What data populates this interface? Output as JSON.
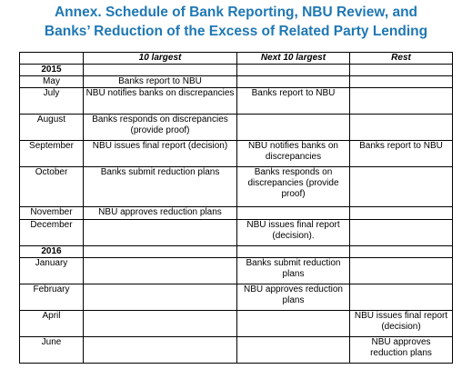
{
  "title": {
    "line1": "Annex. Schedule of Bank Reporting, NBU Review, and",
    "line2": "Banks’ Reduction of the Excess of Related Party Lending"
  },
  "table": {
    "headers": [
      "",
      "10 largest",
      "Next 10 largest",
      "Rest"
    ],
    "rows": [
      {
        "type": "year",
        "label": "2015"
      },
      {
        "label": "May",
        "c1": "Banks report to NBU",
        "c2": "",
        "c3": ""
      },
      {
        "label": "July",
        "c1": "NBU notifies banks on discrepancies",
        "c2": "Banks report to NBU",
        "c3": ""
      },
      {
        "label": "August",
        "c1": "Banks responds on discrepancies (provide proof)",
        "c2": "",
        "c3": ""
      },
      {
        "label": "September",
        "c1": "NBU issues final report (decision)",
        "c2": "NBU notifies banks on discrepancies",
        "c3": "Banks report to NBU"
      },
      {
        "label": "October",
        "c1": "Banks submit reduction plans",
        "c2": "Banks responds on discrepancies (provide proof)",
        "c3": ""
      },
      {
        "label": "November",
        "c1": "NBU approves reduction plans",
        "c2": "",
        "c3": ""
      },
      {
        "label": "December",
        "c1": "",
        "c2": "NBU issues final report (decision).",
        "c3": ""
      },
      {
        "type": "year",
        "label": "2016"
      },
      {
        "label": "January",
        "c1": "",
        "c2": "Banks submit reduction plans",
        "c3": ""
      },
      {
        "label": "February",
        "c1": "",
        "c2": "NBU approves reduction plans",
        "c3": ""
      },
      {
        "label": "April",
        "c1": "",
        "c2": "",
        "c3": "NBU issues final report (decision)"
      },
      {
        "label": "June",
        "c1": "",
        "c2": "",
        "c3": "NBU approves reduction plans"
      }
    ]
  }
}
